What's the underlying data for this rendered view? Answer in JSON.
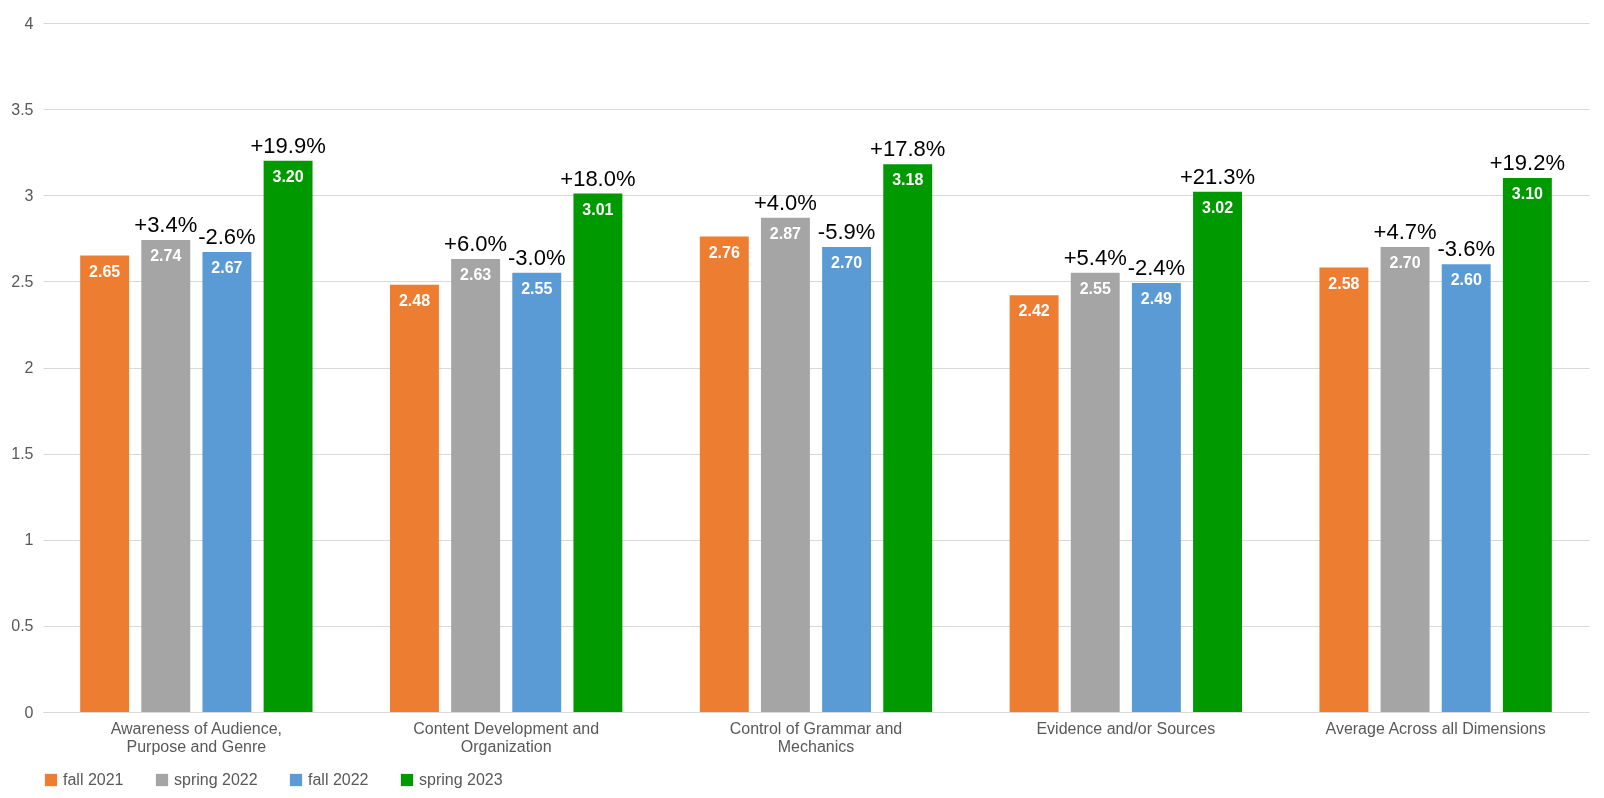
{
  "chart_data": {
    "type": "bar",
    "categories": [
      "Awareness of Audience, Purpose and Genre",
      "Content Development and Organization",
      "Control of Grammar and Mechanics",
      "Evidence and/or Sources",
      "Average Across all Dimensions"
    ],
    "series": [
      {
        "name": "fall 2021",
        "color": "#ed7d31",
        "values": [
          2.65,
          2.48,
          2.76,
          2.42,
          2.58
        ],
        "value_labels": [
          "2.65",
          "2.48",
          "2.76",
          "2.42",
          "2.58"
        ]
      },
      {
        "name": "spring 2022",
        "color": "#a5a5a5",
        "values": [
          2.74,
          2.63,
          2.87,
          2.55,
          2.7
        ],
        "value_labels": [
          "2.74",
          "2.63",
          "2.87",
          "2.55",
          "2.70"
        ]
      },
      {
        "name": "fall 2022",
        "color": "#5b9bd5",
        "values": [
          2.67,
          2.55,
          2.7,
          2.49,
          2.6
        ],
        "value_labels": [
          "2.67",
          "2.55",
          "2.70",
          "2.49",
          "2.60"
        ]
      },
      {
        "name": "spring 2023",
        "color": "#009900",
        "values": [
          3.2,
          3.01,
          3.18,
          3.02,
          3.1
        ],
        "value_labels": [
          "3.20",
          "3.01",
          "3.18",
          "3.02",
          "3.10"
        ]
      }
    ],
    "ylim": [
      0,
      4
    ],
    "yticks": [
      0,
      0.5,
      1,
      1.5,
      2,
      2.5,
      3,
      3.5,
      4
    ],
    "grid": "y",
    "legend": "bottom",
    "annotations": [
      "+3.4%",
      "-2.6%",
      "+19.9%",
      "+6.0%",
      "-3.0%",
      "+18.0%",
      "+4.0%",
      "-5.9%",
      "+17.8%",
      "+5.4%",
      "-2.4%",
      "+21.3%",
      "+4.7%",
      "-3.6%",
      "+19.2%"
    ]
  }
}
